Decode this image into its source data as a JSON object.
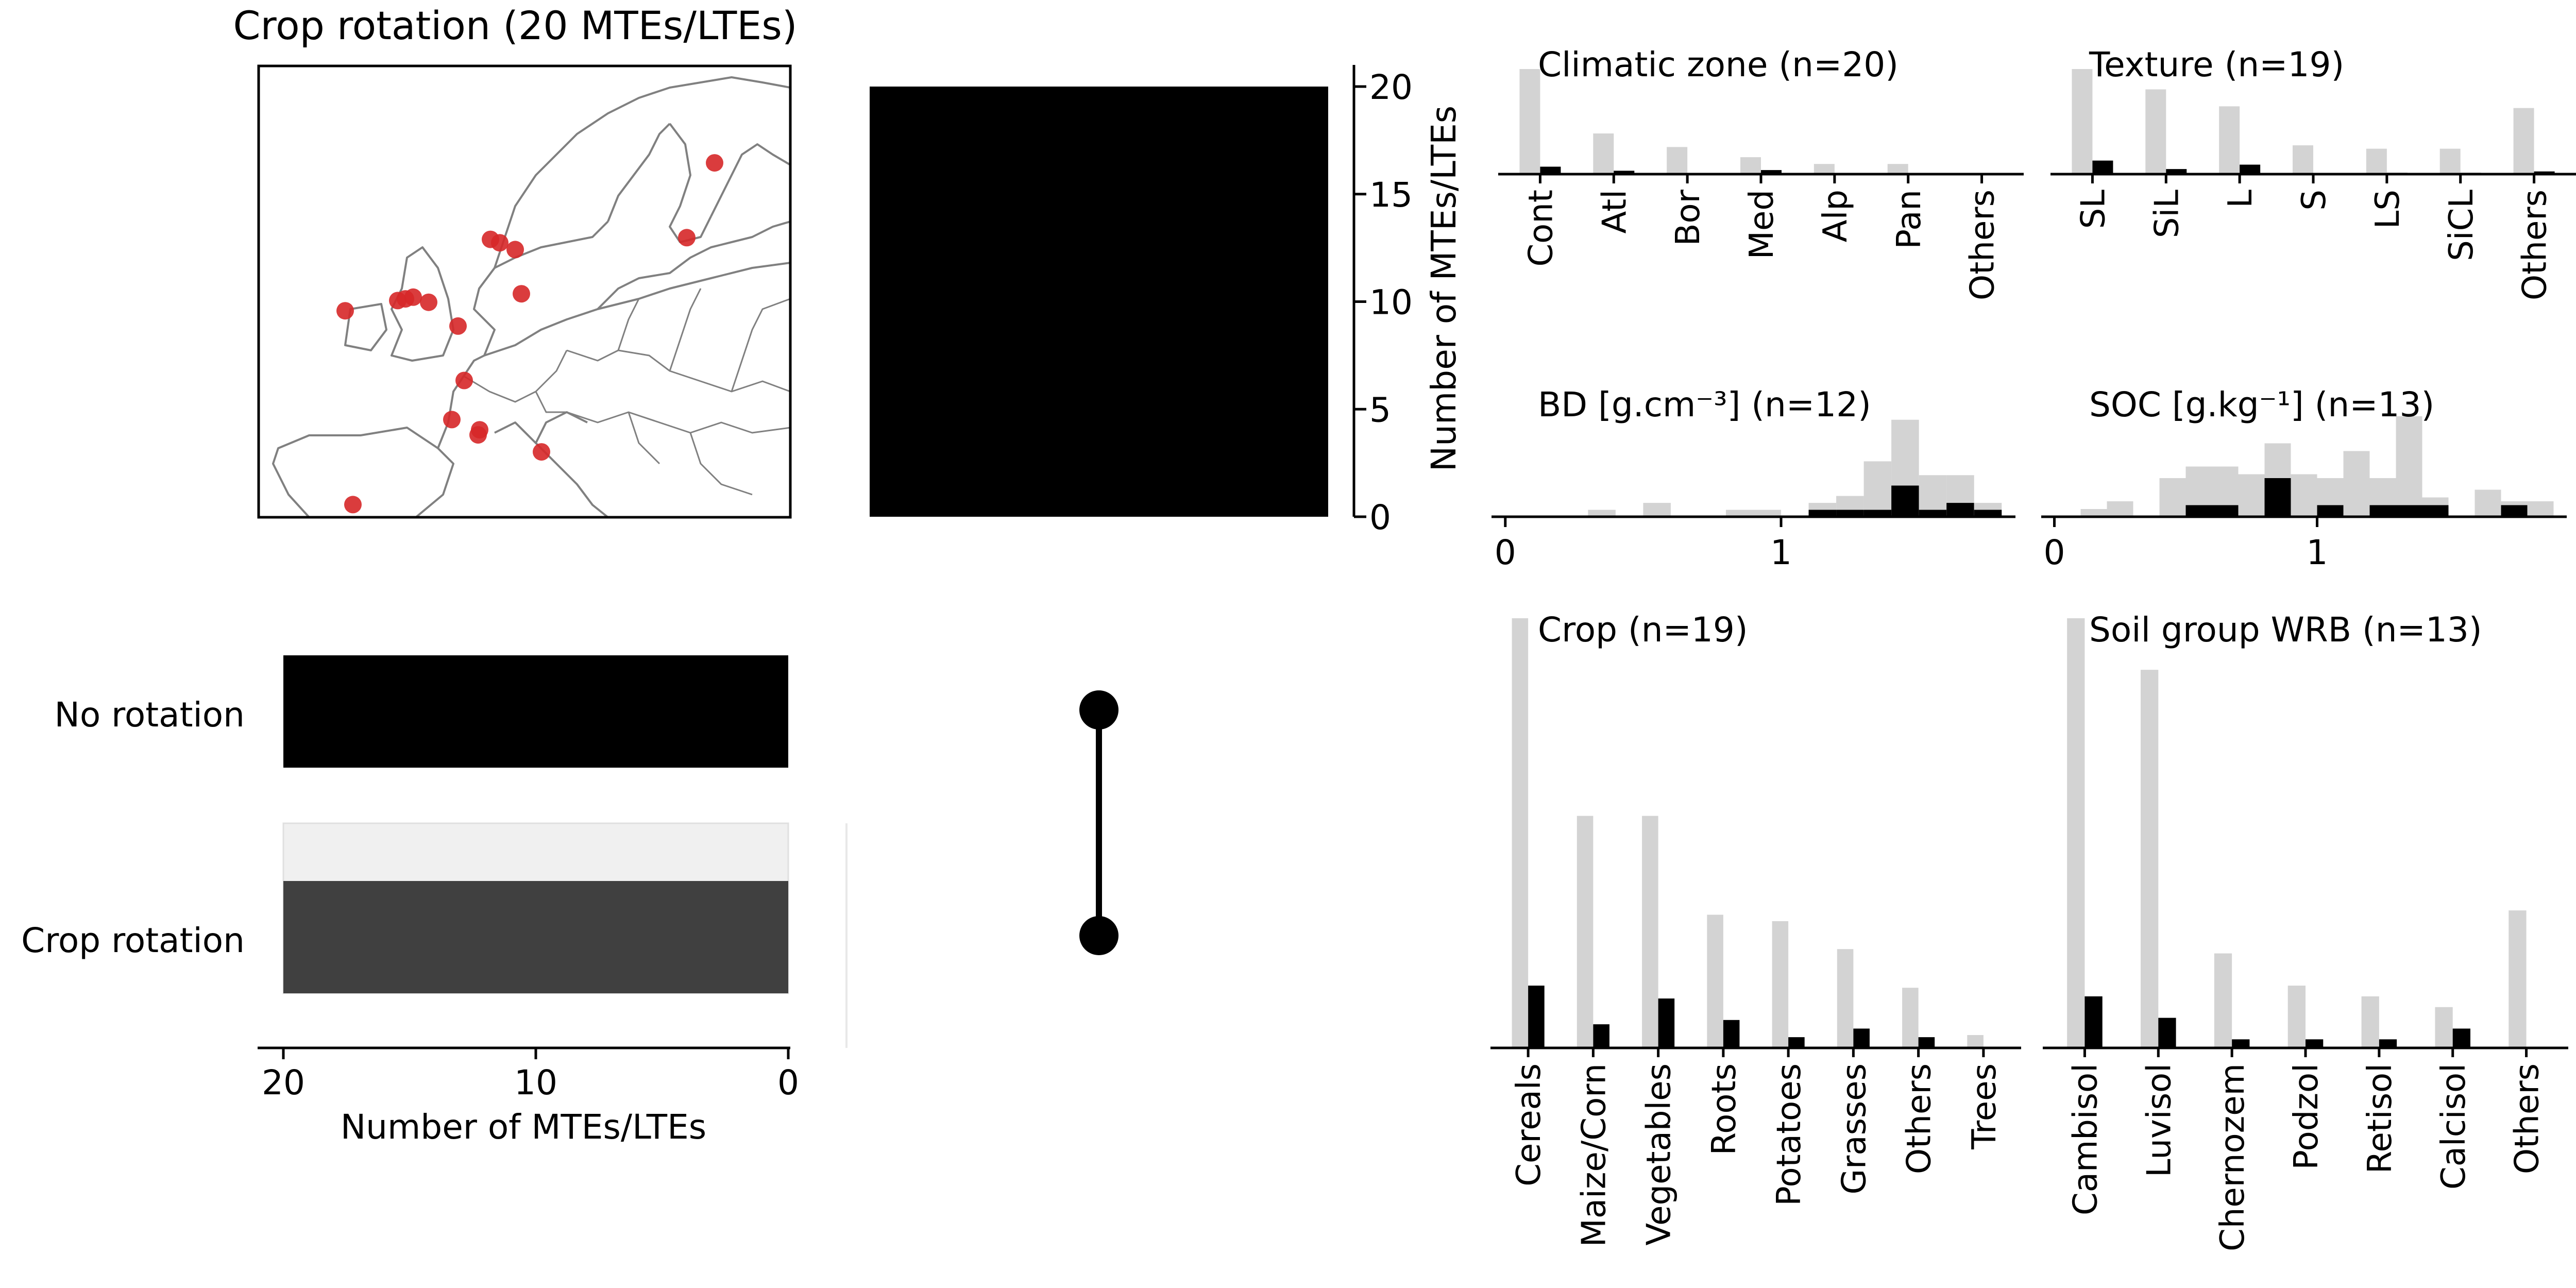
{
  "title": "Crop rotation (20 MTEs/LTEs)",
  "colors": {
    "background_bar": "#d3d3d3",
    "foreground_bar": "#000000",
    "crop_rotation_bar": "#404040",
    "highlight_band": "#f0f0f0",
    "map_land_border": "#808080",
    "site_marker": "#d62728",
    "axis": "#000000"
  },
  "map": {
    "region": "Europe",
    "sites": [
      {
        "lon": -3.9,
        "lat": 40.2
      },
      {
        "lon": -4.4,
        "lat": 51.6
      },
      {
        "lon": -1.0,
        "lat": 52.2
      },
      {
        "lon": -0.5,
        "lat": 52.3
      },
      {
        "lon": 0.0,
        "lat": 52.4
      },
      {
        "lon": 1.0,
        "lat": 52.1
      },
      {
        "lon": 5.0,
        "lat": 55.8
      },
      {
        "lon": 5.6,
        "lat": 55.6
      },
      {
        "lon": 6.6,
        "lat": 55.2
      },
      {
        "lon": 2.9,
        "lat": 50.7
      },
      {
        "lon": 7.0,
        "lat": 52.6
      },
      {
        "lon": 3.3,
        "lat": 47.5
      },
      {
        "lon": 2.5,
        "lat": 45.2
      },
      {
        "lon": 4.3,
        "lat": 44.6
      },
      {
        "lon": 4.2,
        "lat": 44.3
      },
      {
        "lon": 8.3,
        "lat": 43.3
      },
      {
        "lon": 17.7,
        "lat": 55.9
      },
      {
        "lon": 19.5,
        "lat": 60.3
      }
    ]
  },
  "chart_data": [
    {
      "id": "intersection_bar",
      "type": "bar",
      "categories": [
        "No rotation & Crop rotation"
      ],
      "values": [
        20
      ],
      "ylabel": "Number of MTEs/LTEs",
      "ylim": [
        0,
        20
      ],
      "yticks": [
        0,
        5,
        10,
        15,
        20
      ]
    },
    {
      "id": "set_sizes",
      "type": "bar",
      "orientation": "horizontal",
      "categories": [
        "No rotation",
        "Crop rotation"
      ],
      "values": [
        20,
        20
      ],
      "xlabel": "Number of MTEs/LTEs",
      "xlim": [
        20,
        0
      ],
      "xticks": [
        20,
        10,
        0
      ]
    },
    {
      "id": "matrix",
      "type": "table",
      "rows": [
        "No rotation",
        "Crop rotation"
      ],
      "columns": 1,
      "membership": [
        [
          true
        ],
        [
          true
        ]
      ]
    },
    {
      "id": "climatic_zone",
      "type": "bar",
      "title": "Climatic zone (n=20)",
      "categories": [
        "Cont",
        "Atl",
        "Bor",
        "Med",
        "Alp",
        "Pan",
        "Others"
      ],
      "series": [
        {
          "values": [
            31,
            12,
            8,
            5,
            3,
            3,
            0
          ]
        },
        {
          "values": [
            2.2,
            1.0,
            0.2,
            1.2,
            0,
            0,
            0
          ]
        }
      ],
      "ylim": [
        0,
        31
      ]
    },
    {
      "id": "texture",
      "type": "bar",
      "title": "Texture (n=19)",
      "categories": [
        "SL",
        "SiL",
        "L",
        "S",
        "LS",
        "SiCL",
        "Others"
      ],
      "series": [
        {
          "values": [
            31,
            25,
            20,
            8.5,
            7.5,
            7.5,
            19.5
          ]
        },
        {
          "values": [
            4.0,
            1.5,
            2.8,
            0,
            0.4,
            0.4,
            0.8
          ]
        }
      ],
      "ylim": [
        0,
        31
      ]
    },
    {
      "id": "bulk_density",
      "type": "bar",
      "title": "BD [g.cm⁻³] (n=12)",
      "x": [
        0.2,
        0.3,
        0.4,
        0.5,
        0.6,
        0.7,
        0.8,
        0.9,
        1.0,
        1.1,
        1.2,
        1.3,
        1.4,
        1.5,
        1.6,
        1.7
      ],
      "bin_width": 0.1,
      "series": [
        {
          "values": [
            0,
            0.1,
            0,
            0.2,
            0,
            0,
            0.1,
            0.1,
            0,
            0.2,
            0.3,
            0.8,
            1.4,
            0.6,
            0.6,
            0.2
          ]
        },
        {
          "values": [
            0,
            0,
            0,
            0,
            0,
            0,
            0,
            0,
            0,
            0.1,
            0.1,
            0.1,
            0.45,
            0.1,
            0.2,
            0.1
          ]
        }
      ],
      "xticks": [
        0,
        1
      ],
      "xlim": [
        -0.05,
        1.85
      ],
      "ylim": [
        0,
        1.45
      ]
    },
    {
      "id": "soc",
      "type": "bar",
      "title": "SOC [g.kg⁻¹] (n=13)",
      "x": [
        0.1,
        0.2,
        0.3,
        0.4,
        0.5,
        0.6,
        0.7,
        0.8,
        0.9,
        1.0,
        1.1,
        1.2,
        1.3,
        1.4,
        1.5,
        1.6,
        1.7,
        1.8
      ],
      "bin_width": 0.1,
      "series": [
        {
          "values": [
            0.1,
            0.2,
            0,
            0.5,
            0.65,
            0.65,
            0.55,
            0.95,
            0.55,
            0.5,
            0.85,
            0.5,
            1.3,
            0.25,
            0,
            0.35,
            0.2,
            0.2
          ]
        },
        {
          "values": [
            0,
            0,
            0,
            0,
            0.15,
            0.15,
            0,
            0.5,
            0,
            0.15,
            0,
            0.15,
            0.15,
            0.15,
            0,
            0,
            0.15,
            0
          ]
        }
      ],
      "xticks": [
        0,
        1
      ],
      "xlim": [
        -0.05,
        1.95
      ],
      "ylim": [
        0,
        1.3
      ]
    },
    {
      "id": "crop",
      "type": "bar",
      "title": "Crop (n=19)",
      "categories": [
        "Cereals",
        "Maize/Corn",
        "Vegetables",
        "Roots",
        "Potatoes",
        "Grasses",
        "Others",
        "Trees"
      ],
      "series": [
        {
          "values": [
            100,
            54,
            54,
            31,
            29.5,
            23,
            14,
            3
          ]
        },
        {
          "values": [
            14.5,
            5.5,
            11.5,
            6.5,
            2.5,
            4.5,
            2.5,
            0
          ]
        }
      ],
      "ylim": [
        0,
        100
      ]
    },
    {
      "id": "soil_group_wrb",
      "type": "bar",
      "title": "Soil group WRB (n=13)",
      "categories": [
        "Cambisol",
        "Luvisol",
        "Chernozem",
        "Podzol",
        "Retisol",
        "Calcisol",
        "Others"
      ],
      "series": [
        {
          "values": [
            100,
            88,
            22,
            14.5,
            12,
            9.5,
            32
          ]
        },
        {
          "values": [
            12,
            7,
            2,
            2,
            2,
            4.5,
            0
          ]
        }
      ],
      "ylim": [
        0,
        100
      ]
    }
  ]
}
